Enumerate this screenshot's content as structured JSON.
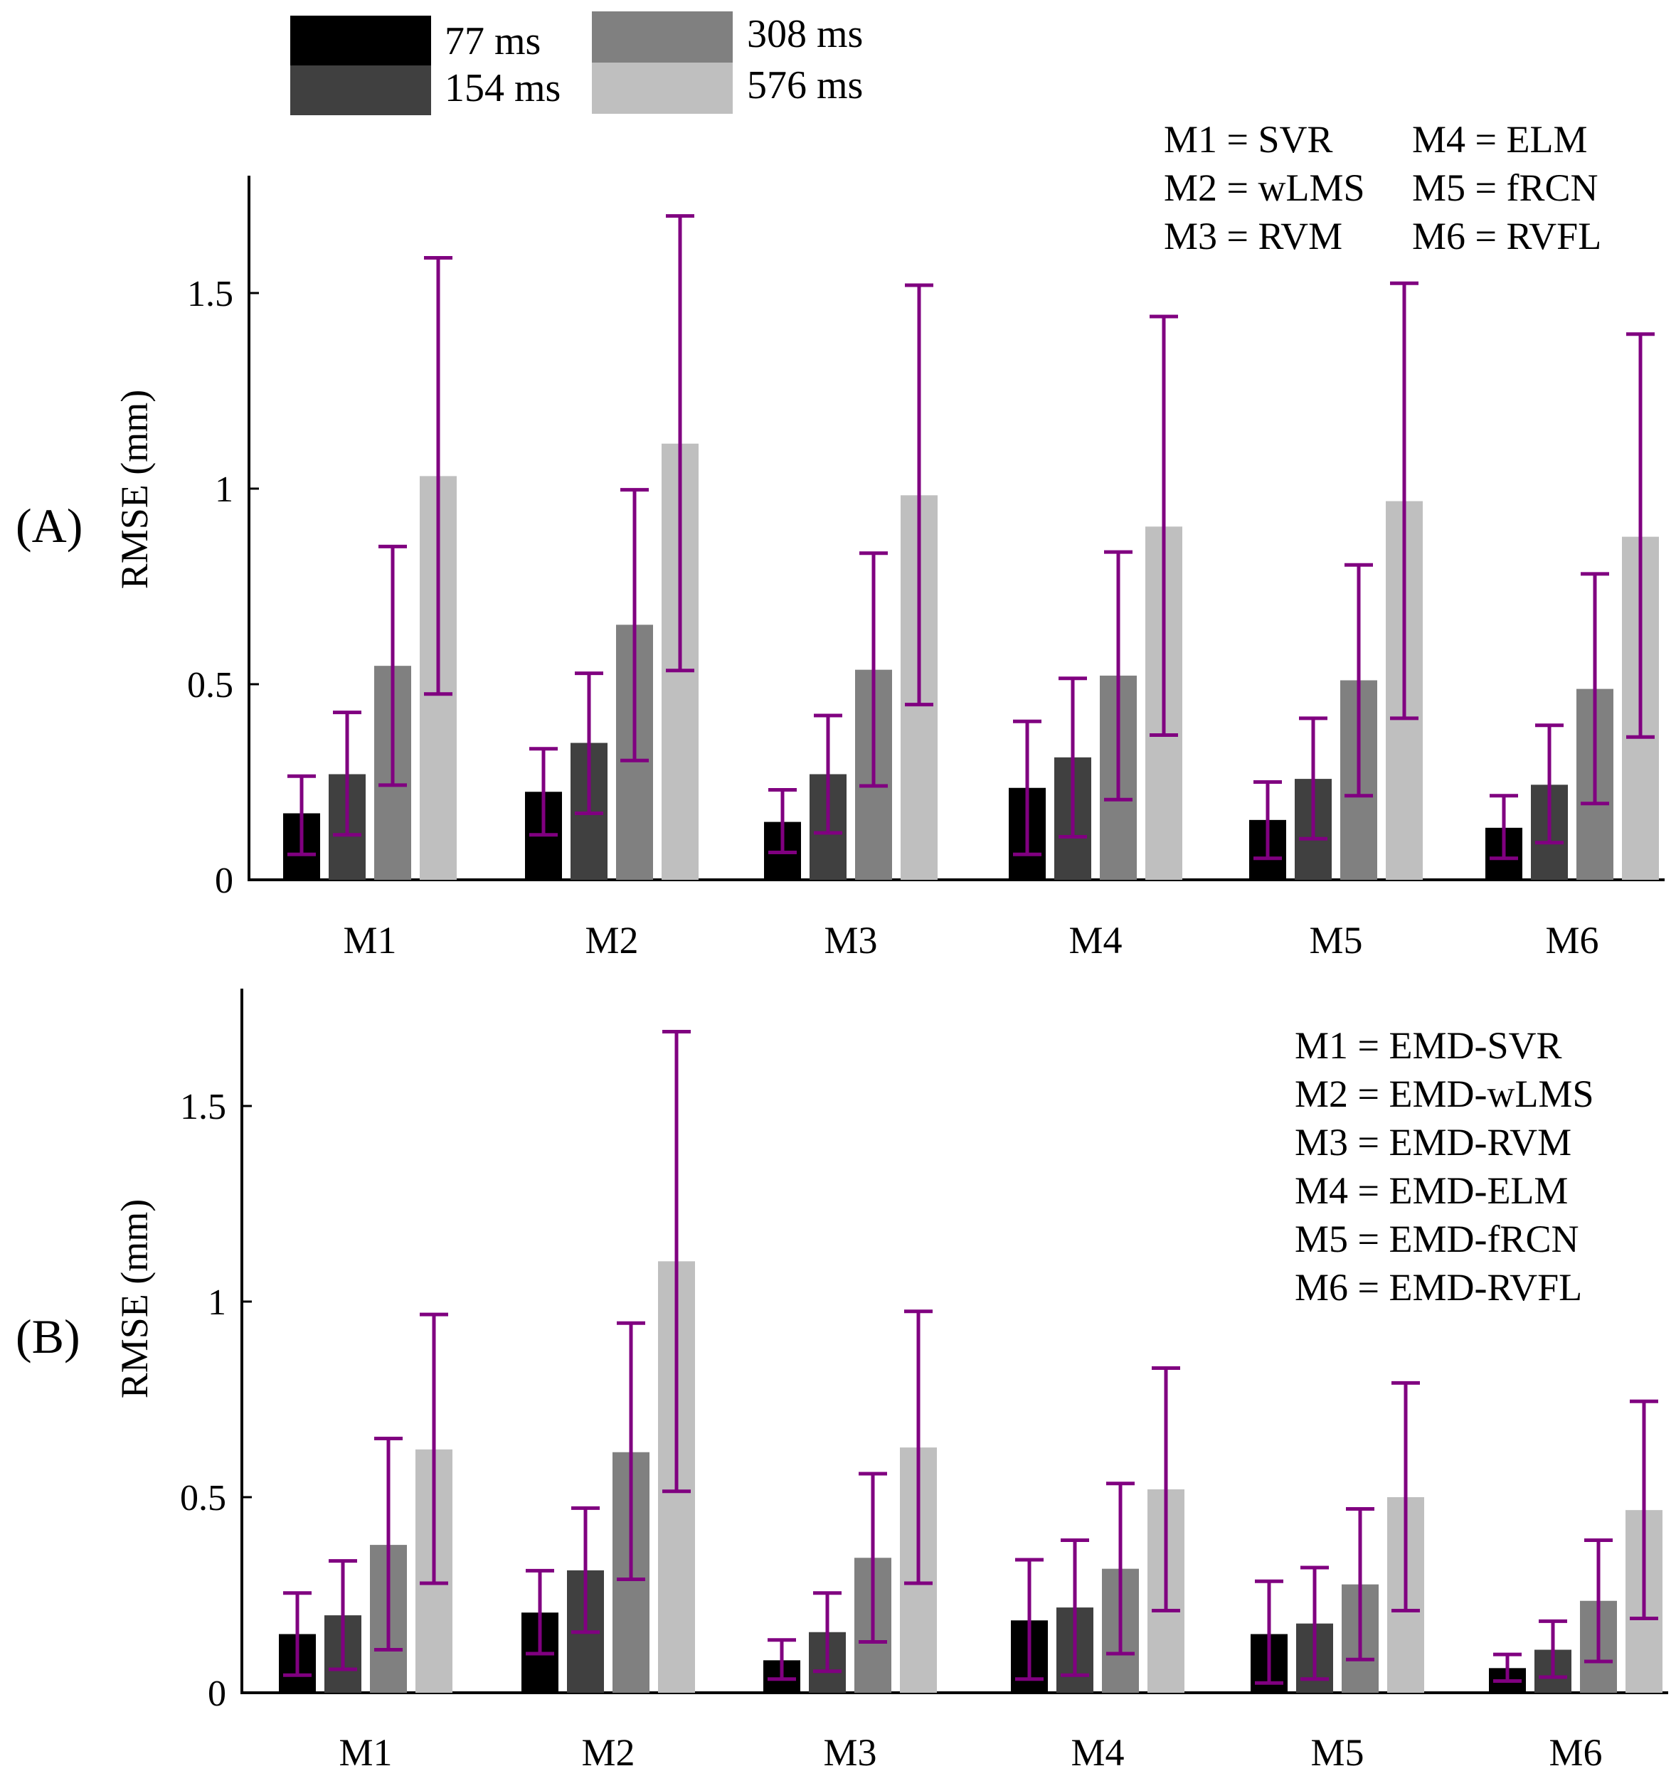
{
  "legend": {
    "entries": [
      {
        "label": "77 ms",
        "color": "#000000"
      },
      {
        "label": "154 ms",
        "color": "#404040"
      },
      {
        "label": "308 ms",
        "color": "#808080"
      },
      {
        "label": "576 ms",
        "color": "#bfbfbf"
      }
    ]
  },
  "error_bar_color": "#800080",
  "chart_data": [
    {
      "type": "bar",
      "panel_label": "(A)",
      "ylabel": "RMSE (mm)",
      "ylim": [
        0,
        1.8
      ],
      "yticks": [
        0,
        0.5,
        1,
        1.5
      ],
      "ytick_labels": [
        "0",
        "0.5",
        "1",
        "1.5"
      ],
      "categories": [
        "M1",
        "M2",
        "M3",
        "M4",
        "M5",
        "M6"
      ],
      "series": [
        {
          "name": "77 ms",
          "color": "#000000",
          "values": [
            0.17,
            0.225,
            0.148,
            0.235,
            0.153,
            0.133
          ],
          "err_low": [
            0.065,
            0.115,
            0.07,
            0.065,
            0.055,
            0.055
          ],
          "err_high": [
            0.265,
            0.335,
            0.23,
            0.405,
            0.25,
            0.215
          ]
        },
        {
          "name": "154 ms",
          "color": "#404040",
          "values": [
            0.27,
            0.35,
            0.27,
            0.313,
            0.258,
            0.243
          ],
          "err_low": [
            0.115,
            0.17,
            0.12,
            0.11,
            0.105,
            0.095
          ],
          "err_high": [
            0.428,
            0.528,
            0.42,
            0.515,
            0.413,
            0.395
          ]
        },
        {
          "name": "308 ms",
          "color": "#808080",
          "values": [
            0.547,
            0.652,
            0.537,
            0.522,
            0.51,
            0.488
          ],
          "err_low": [
            0.242,
            0.305,
            0.24,
            0.205,
            0.215,
            0.195
          ],
          "err_high": [
            0.852,
            0.997,
            0.835,
            0.838,
            0.805,
            0.782
          ]
        },
        {
          "name": "576 ms",
          "color": "#bfbfbf",
          "values": [
            1.032,
            1.115,
            0.983,
            0.903,
            0.968,
            0.877
          ],
          "err_low": [
            0.475,
            0.535,
            0.448,
            0.37,
            0.413,
            0.365
          ],
          "err_high": [
            1.59,
            1.697,
            1.52,
            1.44,
            1.525,
            1.395
          ]
        }
      ],
      "annotation_lines": [
        "M1 = SVR",
        "M2 = wLMS",
        "M3 = RVM",
        "M4 = ELM",
        "M5 = fRCN",
        "M6 = RVFL"
      ]
    },
    {
      "type": "bar",
      "panel_label": "(B)",
      "ylabel": "RMSE (mm)",
      "ylim": [
        0,
        1.8
      ],
      "yticks": [
        0,
        0.5,
        1,
        1.5
      ],
      "ytick_labels": [
        "0",
        "0.5",
        "1",
        "1.5"
      ],
      "categories": [
        "M1",
        "M2",
        "M3",
        "M4",
        "M5",
        "M6"
      ],
      "series": [
        {
          "name": "77 ms",
          "color": "#000000",
          "values": [
            0.15,
            0.205,
            0.083,
            0.185,
            0.15,
            0.063
          ],
          "err_low": [
            0.045,
            0.1,
            0.035,
            0.035,
            0.025,
            0.03
          ],
          "err_high": [
            0.255,
            0.312,
            0.135,
            0.34,
            0.285,
            0.098
          ]
        },
        {
          "name": "154 ms",
          "color": "#404040",
          "values": [
            0.198,
            0.313,
            0.155,
            0.218,
            0.177,
            0.11
          ],
          "err_low": [
            0.06,
            0.155,
            0.055,
            0.045,
            0.035,
            0.04
          ],
          "err_high": [
            0.337,
            0.472,
            0.255,
            0.39,
            0.32,
            0.183
          ]
        },
        {
          "name": "308 ms",
          "color": "#808080",
          "values": [
            0.378,
            0.615,
            0.345,
            0.317,
            0.277,
            0.235
          ],
          "err_low": [
            0.11,
            0.29,
            0.13,
            0.1,
            0.085,
            0.08
          ],
          "err_high": [
            0.65,
            0.945,
            0.56,
            0.535,
            0.47,
            0.39
          ]
        },
        {
          "name": "576 ms",
          "color": "#bfbfbf",
          "values": [
            0.622,
            1.103,
            0.627,
            0.52,
            0.5,
            0.467
          ],
          "err_low": [
            0.28,
            0.515,
            0.28,
            0.21,
            0.21,
            0.19
          ],
          "err_high": [
            0.967,
            1.69,
            0.975,
            0.83,
            0.792,
            0.745
          ]
        }
      ],
      "annotation_lines": [
        "M1 = EMD-SVR",
        "M2 = EMD-wLMS",
        "M3 = EMD-RVM",
        "M4 = EMD-ELM",
        "M5 = EMD-fRCN",
        "M6 = EMD-RVFL"
      ]
    }
  ]
}
